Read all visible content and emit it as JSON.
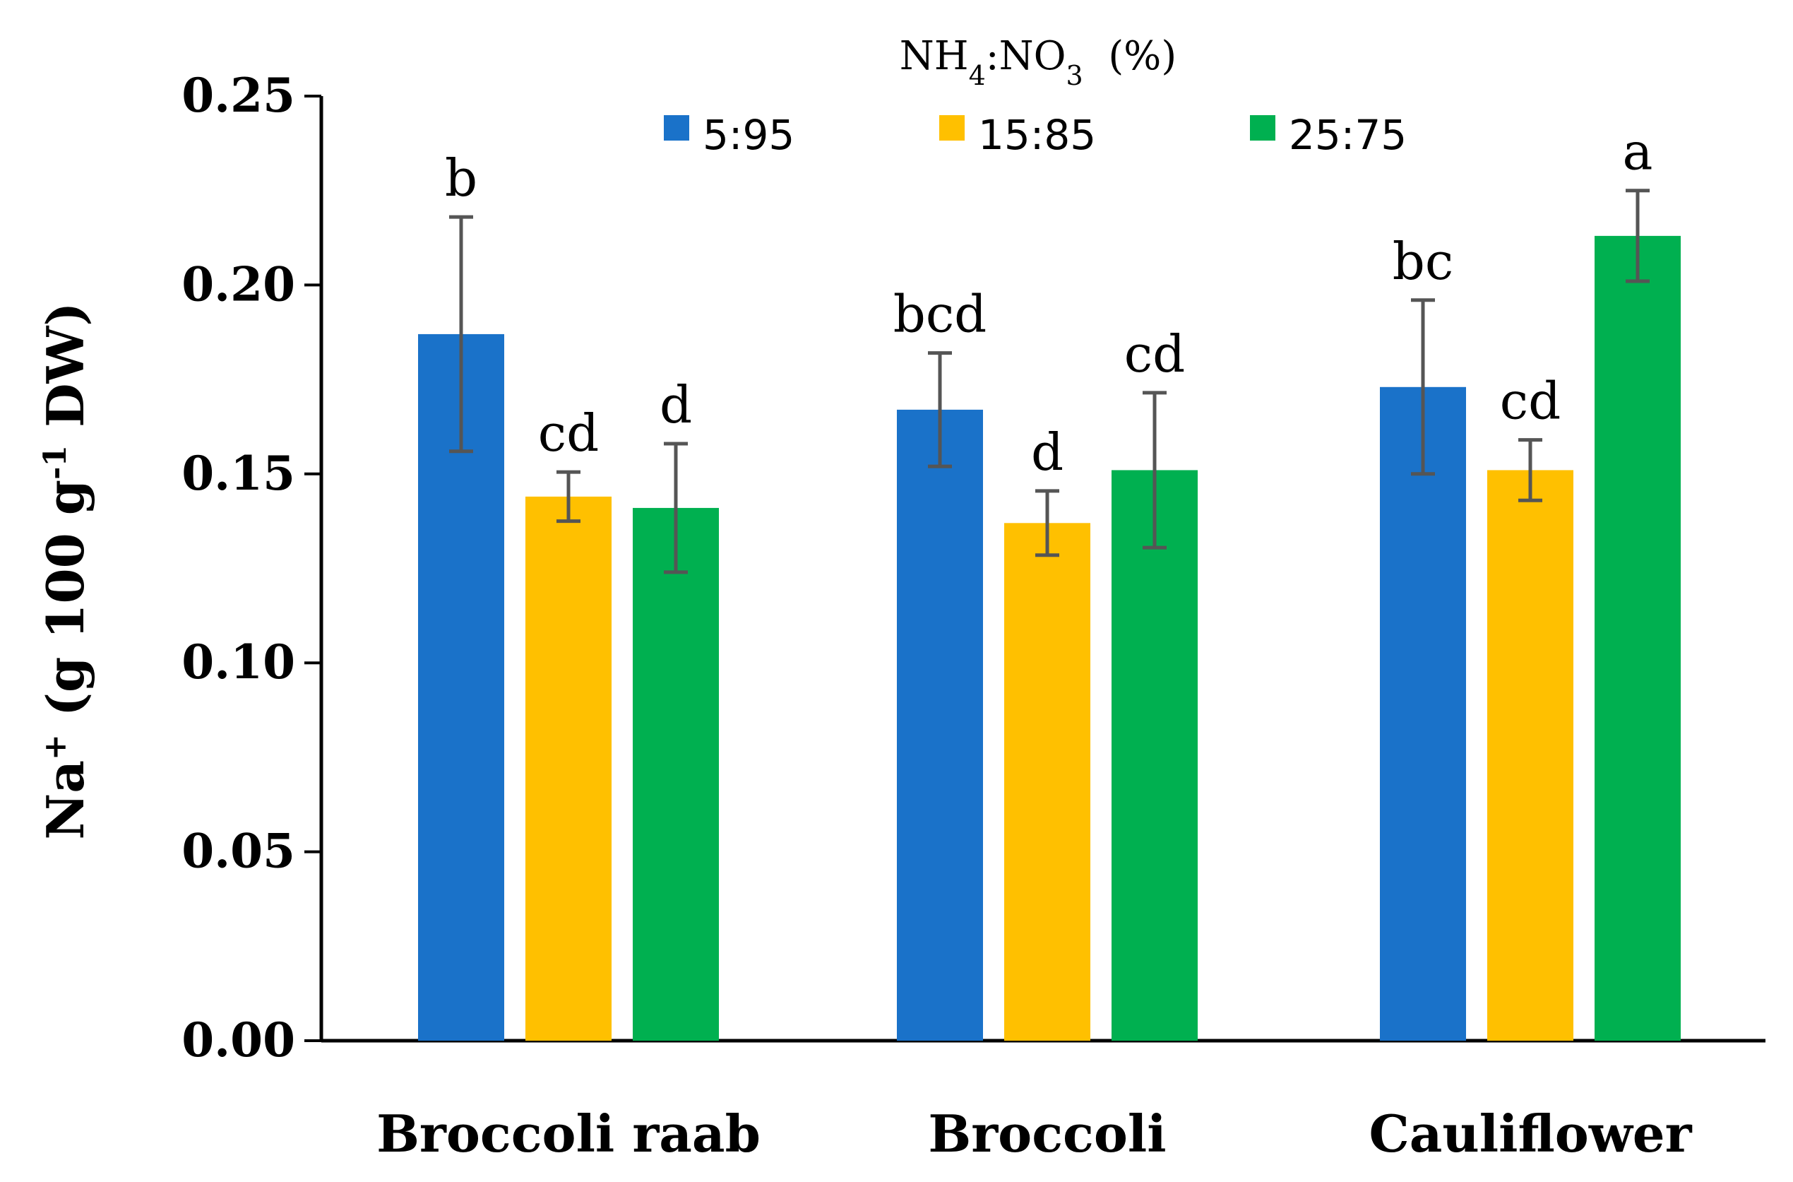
{
  "chart_data": {
    "type": "bar",
    "title": "",
    "xlabel": "",
    "ylabel": {
      "prefix": "Na",
      "sup1": "+",
      "middle": " (g 100 g",
      "sup2": "-1",
      "suffix": " DW)"
    },
    "legend_title": {
      "p1": "NH",
      "s1": "4",
      "p2": ":NO",
      "s2": "3",
      "p3": "  (%)"
    },
    "legend_position": "top",
    "ylim": [
      0,
      0.25
    ],
    "yticks": [
      0.0,
      0.05,
      0.1,
      0.15,
      0.2,
      0.25
    ],
    "ytick_labels": [
      "0.00",
      "0.05",
      "0.10",
      "0.15",
      "0.20",
      "0.25"
    ],
    "grid": false,
    "categories": [
      "Broccoli raab",
      "Broccoli",
      "Cauliflower"
    ],
    "series": [
      {
        "name": "5:95",
        "color": "#1a72c9",
        "values": [
          0.187,
          0.167,
          0.173
        ],
        "errors": [
          0.031,
          0.015,
          0.023
        ],
        "letters": [
          "b",
          "bcd",
          "bc"
        ]
      },
      {
        "name": "15:85",
        "color": "#ffc000",
        "values": [
          0.144,
          0.137,
          0.151
        ],
        "errors": [
          0.0065,
          0.0085,
          0.008
        ],
        "letters": [
          "cd",
          "d",
          "cd"
        ]
      },
      {
        "name": "25:75",
        "color": "#00b050",
        "values": [
          0.141,
          0.151,
          0.213
        ],
        "errors": [
          0.017,
          0.0205,
          0.012
        ],
        "letters": [
          "d",
          "cd",
          "a"
        ]
      }
    ],
    "error_bar_color": "#555555"
  }
}
